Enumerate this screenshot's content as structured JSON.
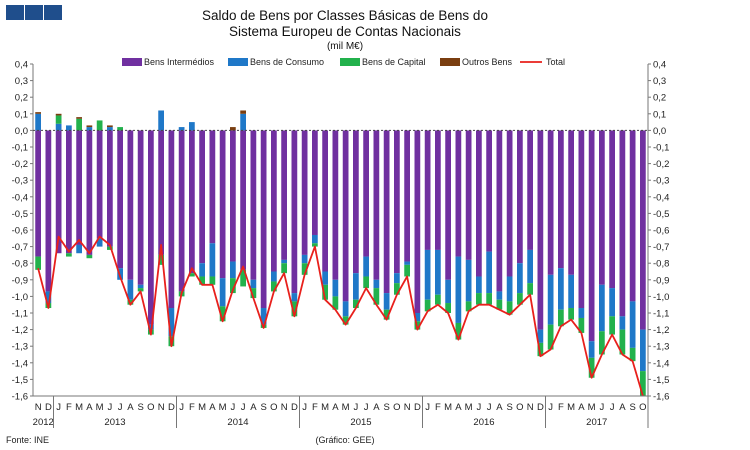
{
  "header": {
    "logo_label": "GEE logo"
  },
  "source_text": "Fonte: INE",
  "credit_text": "(Gráfico: GEE)",
  "chart_data": {
    "type": "bar",
    "title_line1": "Saldo de Bens por Classes Básicas de Bens do",
    "title_line2": "Sistema Europeu de Contas Nacionais",
    "unit": "(mil M€)",
    "ylim": [
      -1.6,
      0.4
    ],
    "yticks": [
      "0,4",
      "0,3",
      "0,2",
      "0,1",
      "0,0",
      "-0,1",
      "-0,2",
      "-0,3",
      "-0,4",
      "-0,5",
      "-0,6",
      "-0,7",
      "-0,8",
      "-0,9",
      "-1,0",
      "-1,1",
      "-1,2",
      "-1,3",
      "-1,4",
      "-1,5",
      "-1,6"
    ],
    "grid": false,
    "legend_position": "top",
    "colors": {
      "inter": "#7030a0",
      "cons": "#1f78c8",
      "cap": "#22b14c",
      "outros": "#7a3e10",
      "total": "#e8201c"
    },
    "categories": [
      "N",
      "D",
      "J",
      "F",
      "M",
      "A",
      "M",
      "J",
      "J",
      "A",
      "S",
      "O",
      "N",
      "D",
      "J",
      "F",
      "M",
      "A",
      "M",
      "J",
      "J",
      "A",
      "S",
      "O",
      "N",
      "D",
      "J",
      "F",
      "M",
      "A",
      "M",
      "J",
      "J",
      "A",
      "S",
      "O",
      "N",
      "D",
      "J",
      "F",
      "M",
      "A",
      "M",
      "J",
      "J",
      "A",
      "S",
      "O",
      "N",
      "D",
      "J",
      "F",
      "M",
      "A",
      "M",
      "J",
      "J",
      "A",
      "S",
      "O"
    ],
    "years": [
      {
        "label": "2012",
        "start": 0,
        "end": 2
      },
      {
        "label": "2013",
        "start": 2,
        "end": 14
      },
      {
        "label": "2014",
        "start": 14,
        "end": 26
      },
      {
        "label": "2015",
        "start": 26,
        "end": 38
      },
      {
        "label": "2016",
        "start": 38,
        "end": 50
      },
      {
        "label": "2017",
        "start": 50,
        "end": 60
      }
    ],
    "series": [
      {
        "name": "Bens Intermédios",
        "key": "inter",
        "values": [
          -0.76,
          -0.97,
          -0.74,
          -0.74,
          -0.69,
          -0.75,
          -0.65,
          -0.7,
          -0.83,
          -0.9,
          -0.93,
          -1.17,
          -0.75,
          -1.07,
          -0.97,
          -0.86,
          -0.8,
          -0.68,
          -0.89,
          -0.79,
          -0.84,
          -0.9,
          -1.07,
          -0.85,
          -0.78,
          -0.98,
          -0.75,
          -0.63,
          -0.85,
          -0.9,
          -1.03,
          -0.86,
          -0.76,
          -0.9,
          -0.98,
          -0.86,
          -0.79,
          -1.1,
          -0.72,
          -0.72,
          -0.9,
          -0.76,
          -0.78,
          -0.88,
          -0.73,
          -0.97,
          -0.88,
          -0.8,
          -0.72,
          -1.2,
          -0.87,
          -0.83,
          -0.87,
          -1.07,
          -1.27,
          -0.93,
          -0.95,
          -1.12,
          -1.03,
          -1.2
        ]
      },
      {
        "name": "Bens de Consumo",
        "key": "cons",
        "values": [
          0.1,
          -0.07,
          0.04,
          0.03,
          -0.05,
          0.02,
          -0.05,
          0.02,
          -0.07,
          -0.12,
          -0.02,
          -0.03,
          0.12,
          -0.17,
          0.02,
          0.05,
          -0.08,
          -0.2,
          -0.17,
          -0.1,
          0.1,
          -0.05,
          -0.1,
          -0.06,
          -0.02,
          -0.05,
          -0.05,
          -0.05,
          -0.08,
          -0.1,
          -0.09,
          -0.16,
          -0.12,
          -0.05,
          -0.1,
          -0.06,
          -0.02,
          -0.05,
          -0.3,
          -0.27,
          -0.14,
          -0.4,
          -0.25,
          -0.1,
          -0.25,
          -0.05,
          -0.15,
          -0.18,
          -0.2,
          -0.08,
          -0.3,
          -0.25,
          -0.2,
          -0.06,
          -0.1,
          -0.28,
          -0.17,
          -0.08,
          -0.28,
          -0.25
        ]
      },
      {
        "name": "Bens de Capital",
        "key": "cap",
        "values": [
          -0.08,
          -0.03,
          0.05,
          -0.02,
          0.07,
          -0.02,
          0.06,
          -0.02,
          0.02,
          -0.03,
          -0.02,
          -0.03,
          -0.06,
          -0.06,
          -0.03,
          -0.02,
          -0.05,
          -0.05,
          -0.09,
          -0.09,
          -0.1,
          -0.06,
          -0.02,
          -0.06,
          -0.06,
          -0.09,
          -0.07,
          -0.02,
          -0.09,
          -0.08,
          -0.05,
          -0.05,
          -0.07,
          -0.1,
          -0.06,
          -0.07,
          -0.07,
          -0.05,
          -0.07,
          -0.06,
          -0.06,
          -0.1,
          -0.06,
          -0.07,
          -0.07,
          -0.06,
          -0.08,
          -0.07,
          -0.07,
          -0.08,
          -0.15,
          -0.1,
          -0.07,
          -0.09,
          -0.12,
          -0.14,
          -0.11,
          -0.15,
          -0.08,
          -0.15
        ]
      },
      {
        "name": "Outros Bens",
        "key": "outros",
        "values": [
          0.01,
          0.0,
          0.01,
          0.0,
          0.01,
          0.01,
          0.0,
          0.01,
          0.0,
          0.0,
          0.0,
          0.0,
          0.0,
          0.0,
          0.0,
          0.0,
          0.0,
          0.0,
          0.0,
          0.02,
          0.02,
          0.0,
          0.0,
          0.0,
          0.0,
          0.0,
          0.0,
          0.0,
          0.0,
          0.0,
          0.0,
          0.0,
          0.0,
          0.0,
          0.0,
          0.0,
          0.0,
          0.0,
          0.0,
          0.0,
          0.0,
          0.0,
          0.0,
          0.0,
          0.0,
          0.0,
          0.0,
          0.0,
          0.0,
          0.0,
          0.0,
          0.0,
          0.0,
          0.0,
          0.0,
          0.0,
          0.0,
          0.0,
          0.0,
          0.0
        ]
      },
      {
        "name": "Total",
        "key": "total",
        "type": "line",
        "values": [
          -0.83,
          -1.07,
          -0.64,
          -0.73,
          -0.66,
          -0.74,
          -0.64,
          -0.69,
          -0.88,
          -1.05,
          -0.97,
          -1.23,
          -0.69,
          -1.3,
          -0.98,
          -0.83,
          -0.93,
          -0.93,
          -1.15,
          -0.96,
          -0.82,
          -1.01,
          -1.19,
          -0.97,
          -0.86,
          -1.12,
          -0.87,
          -0.7,
          -1.02,
          -1.08,
          -1.17,
          -1.07,
          -0.95,
          -1.05,
          -1.14,
          -0.99,
          -0.88,
          -1.2,
          -1.09,
          -1.05,
          -1.1,
          -1.26,
          -1.09,
          -1.05,
          -1.05,
          -1.08,
          -1.11,
          -1.05,
          -0.99,
          -1.36,
          -1.32,
          -1.18,
          -1.14,
          -1.22,
          -1.49,
          -1.35,
          -1.23,
          -1.35,
          -1.39,
          -1.6
        ]
      }
    ]
  }
}
